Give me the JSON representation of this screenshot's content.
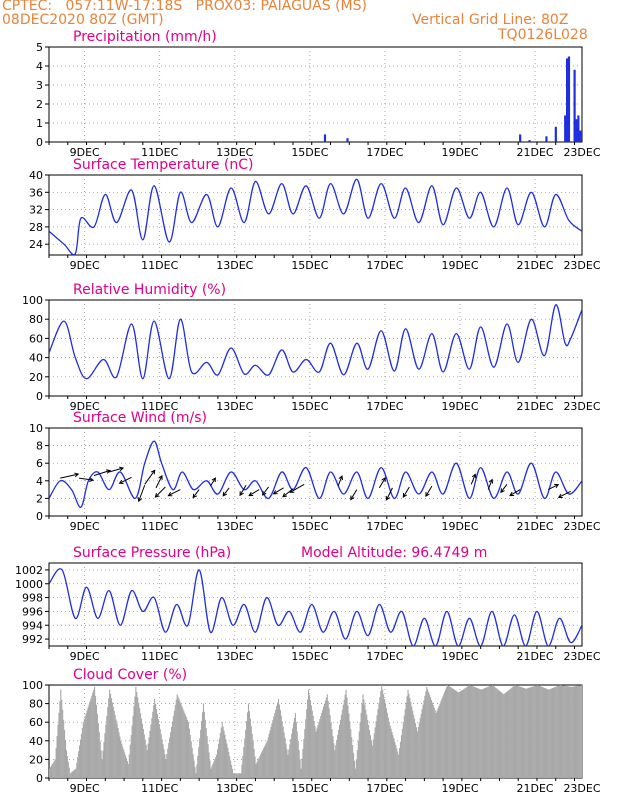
{
  "header": {
    "line1": "CPTEC:   057:11W-17:18S   PROX03: PAIAGUAS (MS)",
    "line2_left": "08DEC2020 80Z (GMT)",
    "line2_right": "Vertical Grid Line: 80Z",
    "line3_right": "TQ0126L028"
  },
  "colors": {
    "header": "#e8833a",
    "title": "#e0008a",
    "series": "#1f2fe0",
    "cloud": "#a8a8a8"
  },
  "x_axis": {
    "labels": [
      "9DEC",
      "11DEC",
      "13DEC",
      "15DEC",
      "17DEC",
      "19DEC",
      "21DEC",
      "23DEC"
    ]
  },
  "chart_data": [
    {
      "id": "precip",
      "type": "bar",
      "title": "Precipitation  (mm/h)",
      "ylim": [
        0,
        5
      ],
      "yticks": [
        "0",
        "1",
        "2",
        "3",
        "4",
        "5"
      ],
      "x_unit": "days since 08DEC2020 00Z (axis shows 9DEC..23DEC)",
      "x": [
        7.35,
        7.95,
        12.55,
        12.8,
        13.25,
        13.5,
        13.75,
        13.8,
        13.85,
        14.0,
        14.05,
        14.1,
        14.15
      ],
      "values": [
        0.4,
        0.2,
        0.4,
        0.1,
        0.3,
        0.8,
        1.4,
        4.4,
        4.5,
        3.8,
        1.2,
        1.4,
        0.6
      ]
    },
    {
      "id": "temp",
      "type": "line",
      "title": "Surface Temperature (nC)",
      "ylim": [
        21.5,
        40
      ],
      "yticks": [
        "24",
        "28",
        "32",
        "36",
        "40"
      ],
      "x": [
        0,
        0.4,
        0.7,
        0.85,
        1.2,
        1.5,
        1.8,
        2.2,
        2.5,
        2.8,
        3.2,
        3.5,
        3.8,
        4.2,
        4.5,
        4.85,
        5.2,
        5.5,
        5.85,
        6.2,
        6.5,
        6.85,
        7.2,
        7.5,
        7.85,
        8.2,
        8.5,
        8.85,
        9.2,
        9.5,
        9.85,
        10.2,
        10.5,
        10.85,
        11.2,
        11.5,
        11.85,
        12.2,
        12.5,
        12.85,
        13.2,
        13.5,
        13.85,
        14.2
      ],
      "values": [
        27,
        24,
        21.8,
        30,
        28,
        35.5,
        29,
        36.5,
        25,
        37.5,
        24.5,
        36,
        29,
        35.5,
        28,
        37,
        29,
        38.5,
        31,
        38,
        31,
        37.5,
        30,
        38,
        31,
        39,
        30,
        38,
        30,
        37,
        29,
        37.5,
        28.5,
        37,
        30,
        36,
        28,
        37,
        28.5,
        36,
        28,
        35.5,
        29.5,
        27
      ]
    },
    {
      "id": "rh",
      "type": "line",
      "title": "Relative Humidity (%)",
      "ylim": [
        0,
        100
      ],
      "yticks": [
        "0",
        "20",
        "40",
        "60",
        "80",
        "100"
      ],
      "x": [
        0,
        0.4,
        0.7,
        1.0,
        1.45,
        1.8,
        2.2,
        2.5,
        2.8,
        3.2,
        3.5,
        3.8,
        4.2,
        4.5,
        4.85,
        5.2,
        5.5,
        5.85,
        6.2,
        6.5,
        6.85,
        7.2,
        7.5,
        7.85,
        8.2,
        8.5,
        8.85,
        9.2,
        9.5,
        9.85,
        10.2,
        10.5,
        10.85,
        11.2,
        11.5,
        11.85,
        12.2,
        12.5,
        12.85,
        13.2,
        13.5,
        13.75,
        13.9,
        14.2
      ],
      "values": [
        45,
        78,
        40,
        18,
        38,
        20,
        75,
        18,
        78,
        18,
        80,
        25,
        35,
        22,
        50,
        23,
        32,
        22,
        48,
        25,
        38,
        25,
        55,
        22,
        55,
        28,
        68,
        26,
        70,
        28,
        65,
        25,
        65,
        28,
        72,
        30,
        75,
        35,
        80,
        42,
        95,
        55,
        60,
        90
      ]
    },
    {
      "id": "wind",
      "type": "line",
      "title": "Surface Wind (m/s)",
      "ylim": [
        0,
        10
      ],
      "yticks": [
        "0",
        "2",
        "4",
        "6",
        "8",
        "10"
      ],
      "x": [
        0,
        0.3,
        0.6,
        0.85,
        1.05,
        1.3,
        1.6,
        1.9,
        2.3,
        2.55,
        2.8,
        3.0,
        3.3,
        3.55,
        3.85,
        4.2,
        4.5,
        4.85,
        5.2,
        5.5,
        5.85,
        6.2,
        6.5,
        6.85,
        7.2,
        7.5,
        7.85,
        8.2,
        8.5,
        8.85,
        9.2,
        9.5,
        9.85,
        10.2,
        10.5,
        10.85,
        11.2,
        11.5,
        11.85,
        12.2,
        12.5,
        12.85,
        13.2,
        13.5,
        13.85,
        14.2
      ],
      "values": [
        2,
        4,
        3,
        1,
        4,
        5,
        3,
        5,
        2,
        6,
        8.5,
        6,
        3,
        5,
        3,
        4,
        2.5,
        5,
        3,
        4,
        2,
        5,
        3,
        5.5,
        2,
        5,
        2.5,
        5,
        2,
        5.5,
        2,
        5,
        2.5,
        5,
        2.5,
        6,
        2,
        5.5,
        2,
        5,
        2.5,
        6,
        2,
        5,
        2.5,
        4
      ]
    },
    {
      "id": "pres",
      "type": "line",
      "title": "Surface Pressure (hPa)",
      "subtitle": "Model Altitude: 96.4749  m",
      "ylim": [
        991,
        1003
      ],
      "yticks": [
        "992",
        "994",
        "996",
        "998",
        "1000",
        "1002"
      ],
      "x": [
        0,
        0.35,
        0.7,
        1.0,
        1.3,
        1.6,
        1.9,
        2.2,
        2.5,
        2.8,
        3.1,
        3.4,
        3.7,
        4.0,
        4.3,
        4.6,
        4.9,
        5.2,
        5.5,
        5.8,
        6.1,
        6.4,
        6.7,
        7.0,
        7.3,
        7.6,
        7.9,
        8.2,
        8.5,
        8.8,
        9.1,
        9.4,
        9.7,
        10.0,
        10.3,
        10.6,
        10.9,
        11.2,
        11.5,
        11.8,
        12.1,
        12.4,
        12.7,
        13.0,
        13.3,
        13.6,
        13.9,
        14.2
      ],
      "values": [
        1000,
        1002,
        995,
        999.5,
        995,
        999,
        994,
        999,
        996,
        998,
        993,
        997,
        994,
        1002,
        993,
        998,
        994,
        997,
        993,
        998,
        994,
        996,
        993,
        997,
        993,
        996,
        992,
        996,
        992.5,
        997,
        993,
        996,
        991,
        995,
        991,
        996,
        991,
        995,
        991,
        996,
        991,
        995.5,
        991,
        996,
        991,
        995,
        991.5,
        994
      ]
    },
    {
      "id": "cloud",
      "type": "area",
      "title": "Cloud Cover (%)",
      "ylim": [
        0,
        100
      ],
      "yticks": [
        "0",
        "20",
        "40",
        "60",
        "80",
        "100"
      ],
      "x": [
        0,
        0.15,
        0.3,
        0.45,
        0.55,
        0.7,
        0.9,
        1.2,
        1.4,
        1.6,
        1.9,
        2.1,
        2.3,
        2.6,
        2.8,
        3.1,
        3.4,
        3.7,
        3.9,
        4.1,
        4.3,
        4.45,
        4.6,
        4.9,
        5.1,
        5.3,
        5.5,
        5.8,
        6.1,
        6.35,
        6.55,
        6.7,
        6.9,
        7.1,
        7.4,
        7.6,
        7.9,
        8.15,
        8.35,
        8.6,
        8.85,
        9.05,
        9.3,
        9.55,
        9.8,
        10.05,
        10.3,
        10.6,
        10.9,
        11.2,
        11.5,
        11.8,
        12.1,
        12.4,
        12.7,
        13.0,
        13.3,
        13.6,
        13.9,
        14.2
      ],
      "values": [
        10,
        20,
        95,
        30,
        5,
        10,
        60,
        98,
        20,
        95,
        40,
        15,
        98,
        30,
        85,
        20,
        90,
        60,
        5,
        80,
        10,
        25,
        60,
        5,
        5,
        80,
        15,
        40,
        85,
        25,
        70,
        10,
        95,
        50,
        90,
        30,
        95,
        10,
        90,
        35,
        100,
        60,
        25,
        95,
        50,
        98,
        70,
        100,
        92,
        100,
        95,
        100,
        90,
        100,
        96,
        100,
        95,
        100,
        98,
        100
      ]
    }
  ]
}
